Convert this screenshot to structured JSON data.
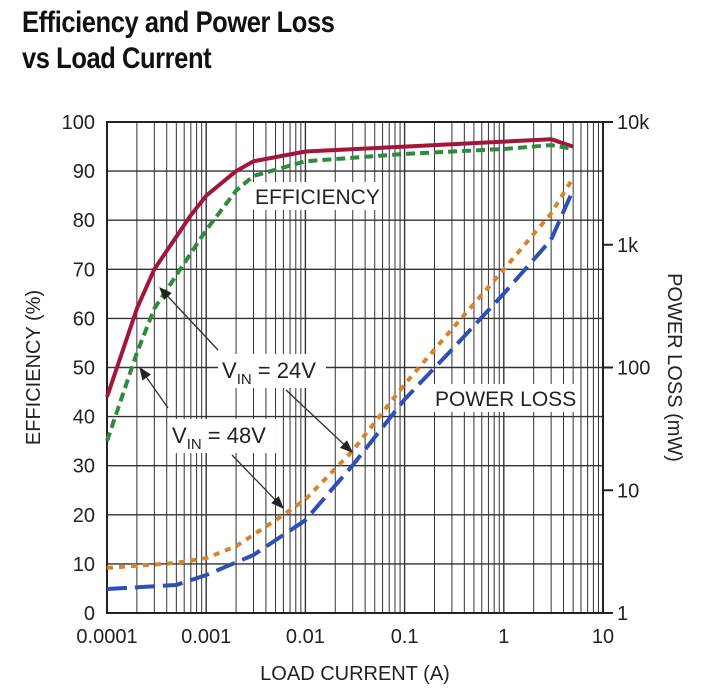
{
  "chart_data": {
    "type": "line",
    "title": "Efficiency and Power Loss vs Load Current",
    "title_lines": [
      "Efficiency and Power Loss",
      "vs Load Current"
    ],
    "xlabel": "LOAD CURRENT (A)",
    "ylabel": "EFFICIENCY (%)",
    "y2label": "POWER LOSS (mW)",
    "xscale": "log",
    "xlim": [
      0.0001,
      10
    ],
    "ylim": [
      0,
      100
    ],
    "y2scale": "log",
    "y2lim": [
      1,
      10000
    ],
    "grid": true,
    "xticks": [
      "0.0001",
      "0.001",
      "0.01",
      "0.1",
      "1",
      "10"
    ],
    "yticks": [
      "0",
      "10",
      "20",
      "30",
      "40",
      "50",
      "60",
      "70",
      "80",
      "90",
      "100"
    ],
    "y2ticks": [
      "1",
      "10",
      "100",
      "1k",
      "10k"
    ],
    "annotations": {
      "efficiency": "EFFICIENCY",
      "power_loss": "POWER LOSS",
      "vin24": "24V",
      "vin48": "48V",
      "vin_prefix": "V",
      "vin_sub": "IN",
      "vin_eq": " = "
    },
    "series": [
      {
        "name": "VIN = 24V efficiency",
        "axis": "left",
        "color": "#a3163a",
        "style": "solid",
        "x": [
          0.0001,
          0.0002,
          0.0003,
          0.0007,
          0.001,
          0.002,
          0.003,
          0.01,
          0.1,
          1,
          3,
          5
        ],
        "y": [
          44,
          62,
          70,
          81,
          85,
          90,
          92,
          94,
          95,
          96,
          96.5,
          95
        ]
      },
      {
        "name": "VIN = 48V efficiency",
        "axis": "left",
        "color": "#2e8b3e",
        "style": "dashed",
        "x": [
          0.0001,
          0.0002,
          0.0003,
          0.001,
          0.002,
          0.003,
          0.01,
          0.1,
          1,
          3,
          5
        ],
        "y": [
          35,
          53,
          62,
          78,
          86,
          89,
          92,
          93.5,
          94.5,
          95.3,
          94.5
        ]
      },
      {
        "name": "VIN = 24V power loss",
        "axis": "right",
        "color": "#2e4fb5",
        "style": "longdash",
        "x": [
          0.0001,
          0.0005,
          0.001,
          0.003,
          0.01,
          0.03,
          0.1,
          0.3,
          1,
          3,
          5
        ],
        "y": [
          1.57,
          1.69,
          2.04,
          2.97,
          5.7,
          16,
          55,
          140,
          400,
          1100,
          2800
        ]
      },
      {
        "name": "VIN = 48V power loss",
        "axis": "right",
        "color": "#d9822b",
        "style": "dotted",
        "x": [
          0.0001,
          0.0005,
          0.001,
          0.002,
          0.005,
          0.01,
          0.03,
          0.1,
          0.3,
          1,
          3,
          5
        ],
        "y": [
          2.33,
          2.56,
          2.8,
          3.5,
          5.7,
          8.4,
          21,
          73,
          205,
          630,
          1800,
          3500
        ]
      }
    ]
  }
}
